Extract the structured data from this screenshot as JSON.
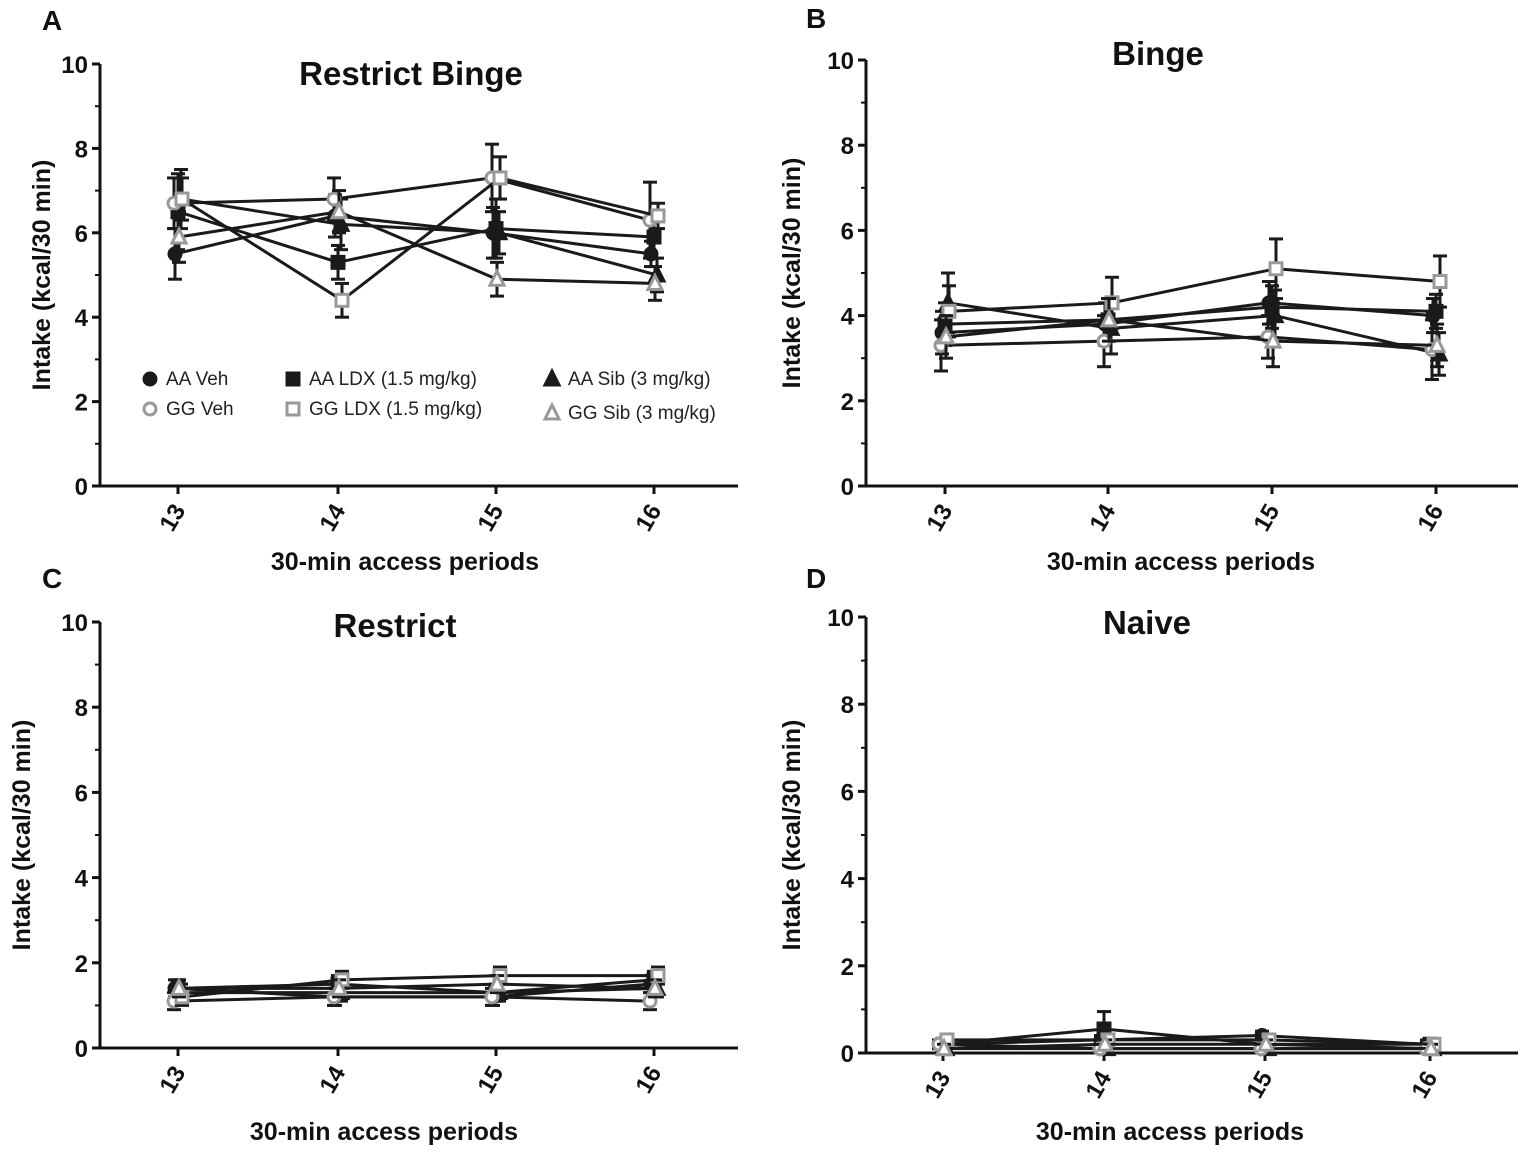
{
  "figure": {
    "legend": [
      {
        "label": "AA Veh",
        "marker": "circle",
        "fill": "#1a1a1a"
      },
      {
        "label": "AA LDX (1.5 mg/kg)",
        "marker": "square",
        "fill": "#1a1a1a"
      },
      {
        "label": "AA Sib (3 mg/kg)",
        "marker": "triangle",
        "fill": "#1a1a1a"
      },
      {
        "label": "GG Veh",
        "marker": "circle",
        "fill": "#ffffff"
      },
      {
        "label": "GG LDX (1.5 mg/kg)",
        "marker": "square",
        "fill": "#ffffff"
      },
      {
        "label": "GG Sib (3 mg/kg)",
        "marker": "triangle",
        "fill": "#ffffff"
      }
    ],
    "colors": {
      "line": "#1a1a1a",
      "open_marker_edge": "#999999",
      "axis": "#111111"
    }
  },
  "chart_data": [
    {
      "type": "line",
      "panel": "A",
      "title": "Restrict Binge",
      "xlabel": "30-min access periods",
      "ylabel": "Intake (kcal/30 min)",
      "categories": [
        "13",
        "14",
        "15",
        "16"
      ],
      "ylim": [
        0,
        10
      ],
      "yticks": [
        "0",
        "2",
        "4",
        "6",
        "8",
        "10"
      ],
      "series": [
        {
          "name": "AA Veh",
          "values": [
            5.5,
            6.4,
            6.0,
            5.5
          ],
          "errors": [
            0.6,
            0.5,
            0.6,
            0.3
          ]
        },
        {
          "name": "AA LDX (1.5 mg/kg)",
          "values": [
            6.5,
            5.3,
            6.1,
            5.9
          ],
          "errors": [
            0.9,
            0.4,
            0.7,
            0.5
          ]
        },
        {
          "name": "AA Sib (3 mg/kg)",
          "values": [
            6.8,
            6.2,
            6.0,
            5.0
          ],
          "errors": [
            0.7,
            0.6,
            0.5,
            0.4
          ]
        },
        {
          "name": "GG Veh",
          "values": [
            6.7,
            6.8,
            7.3,
            6.3
          ],
          "errors": [
            0.6,
            0.5,
            0.8,
            0.9
          ]
        },
        {
          "name": "GG LDX (1.5 mg/kg)",
          "values": [
            6.8,
            4.4,
            7.3,
            6.4
          ],
          "errors": [
            0.5,
            0.4,
            0.5,
            0.3
          ]
        },
        {
          "name": "GG Sib (3 mg/kg)",
          "values": [
            5.9,
            6.5,
            4.9,
            4.8
          ],
          "errors": [
            0.6,
            0.5,
            0.4,
            0.4
          ]
        }
      ]
    },
    {
      "type": "line",
      "panel": "B",
      "title": "Binge",
      "xlabel": "30-min access periods",
      "ylabel": "Intake (kcal/30 min)",
      "categories": [
        "13",
        "14",
        "15",
        "16"
      ],
      "ylim": [
        0,
        10
      ],
      "yticks": [
        "0",
        "2",
        "4",
        "6",
        "8",
        "10"
      ],
      "series": [
        {
          "name": "AA Veh",
          "values": [
            3.6,
            3.8,
            4.3,
            4.0
          ],
          "errors": [
            0.5,
            0.5,
            0.5,
            0.4
          ]
        },
        {
          "name": "AA LDX (1.5 mg/kg)",
          "values": [
            3.8,
            3.9,
            4.2,
            4.1
          ],
          "errors": [
            0.5,
            0.5,
            0.5,
            0.4
          ]
        },
        {
          "name": "AA Sib (3 mg/kg)",
          "values": [
            4.3,
            3.7,
            4.0,
            3.1
          ],
          "errors": [
            0.7,
            0.6,
            0.6,
            0.5
          ]
        },
        {
          "name": "GG Veh",
          "values": [
            3.3,
            3.4,
            3.5,
            3.2
          ],
          "errors": [
            0.6,
            0.6,
            0.5,
            0.7
          ]
        },
        {
          "name": "GG LDX (1.5 mg/kg)",
          "values": [
            4.1,
            4.3,
            5.1,
            4.8
          ],
          "errors": [
            0.6,
            0.6,
            0.7,
            0.6
          ]
        },
        {
          "name": "GG Sib (3 mg/kg)",
          "values": [
            3.5,
            3.9,
            3.4,
            3.3
          ],
          "errors": [
            0.5,
            0.5,
            0.6,
            0.5
          ]
        }
      ]
    },
    {
      "type": "line",
      "panel": "C",
      "title": "Restrict",
      "xlabel": "30-min access periods",
      "ylabel": "Intake (kcal/30 min)",
      "categories": [
        "13",
        "14",
        "15",
        "16"
      ],
      "ylim": [
        0,
        10
      ],
      "yticks": [
        "0",
        "2",
        "4",
        "6",
        "8",
        "10"
      ],
      "series": [
        {
          "name": "AA Veh",
          "values": [
            1.4,
            1.2,
            1.2,
            1.5
          ],
          "errors": [
            0.2,
            0.2,
            0.2,
            0.2
          ]
        },
        {
          "name": "AA LDX (1.5 mg/kg)",
          "values": [
            1.4,
            1.5,
            1.3,
            1.6
          ],
          "errors": [
            0.2,
            0.2,
            0.2,
            0.2
          ]
        },
        {
          "name": "AA Sib (3 mg/kg)",
          "values": [
            1.3,
            1.3,
            1.3,
            1.4
          ],
          "errors": [
            0.2,
            0.2,
            0.2,
            0.2
          ]
        },
        {
          "name": "GG Veh",
          "values": [
            1.1,
            1.2,
            1.2,
            1.1
          ],
          "errors": [
            0.2,
            0.2,
            0.2,
            0.2
          ]
        },
        {
          "name": "GG LDX (1.5 mg/kg)",
          "values": [
            1.2,
            1.6,
            1.7,
            1.7
          ],
          "errors": [
            0.2,
            0.2,
            0.2,
            0.2
          ]
        },
        {
          "name": "GG Sib (3 mg/kg)",
          "values": [
            1.4,
            1.4,
            1.5,
            1.4
          ],
          "errors": [
            0.2,
            0.2,
            0.2,
            0.2
          ]
        }
      ]
    },
    {
      "type": "line",
      "panel": "D",
      "title": "Naive",
      "xlabel": "30-min access periods",
      "ylabel": "Intake (kcal/30 min)",
      "categories": [
        "13",
        "14",
        "15",
        "16"
      ],
      "ylim": [
        0,
        10
      ],
      "yticks": [
        "0",
        "2",
        "4",
        "6",
        "8",
        "10"
      ],
      "series": [
        {
          "name": "AA Veh",
          "values": [
            0.2,
            0.3,
            0.4,
            0.2
          ],
          "errors": [
            0.1,
            0.1,
            0.1,
            0.1
          ]
        },
        {
          "name": "AA LDX (1.5 mg/kg)",
          "values": [
            0.2,
            0.55,
            0.2,
            0.2
          ],
          "errors": [
            0.1,
            0.4,
            0.1,
            0.1
          ]
        },
        {
          "name": "AA Sib (3 mg/kg)",
          "values": [
            0.1,
            0.1,
            0.1,
            0.1
          ],
          "errors": [
            0.1,
            0.1,
            0.1,
            0.1
          ]
        },
        {
          "name": "GG Veh",
          "values": [
            0.2,
            0.1,
            0.1,
            0.1
          ],
          "errors": [
            0.1,
            0.1,
            0.1,
            0.1
          ]
        },
        {
          "name": "GG LDX (1.5 mg/kg)",
          "values": [
            0.3,
            0.3,
            0.3,
            0.2
          ],
          "errors": [
            0.1,
            0.1,
            0.1,
            0.1
          ]
        },
        {
          "name": "GG Sib (3 mg/kg)",
          "values": [
            0.1,
            0.2,
            0.2,
            0.1
          ],
          "errors": [
            0.1,
            0.1,
            0.1,
            0.1
          ]
        }
      ]
    }
  ]
}
